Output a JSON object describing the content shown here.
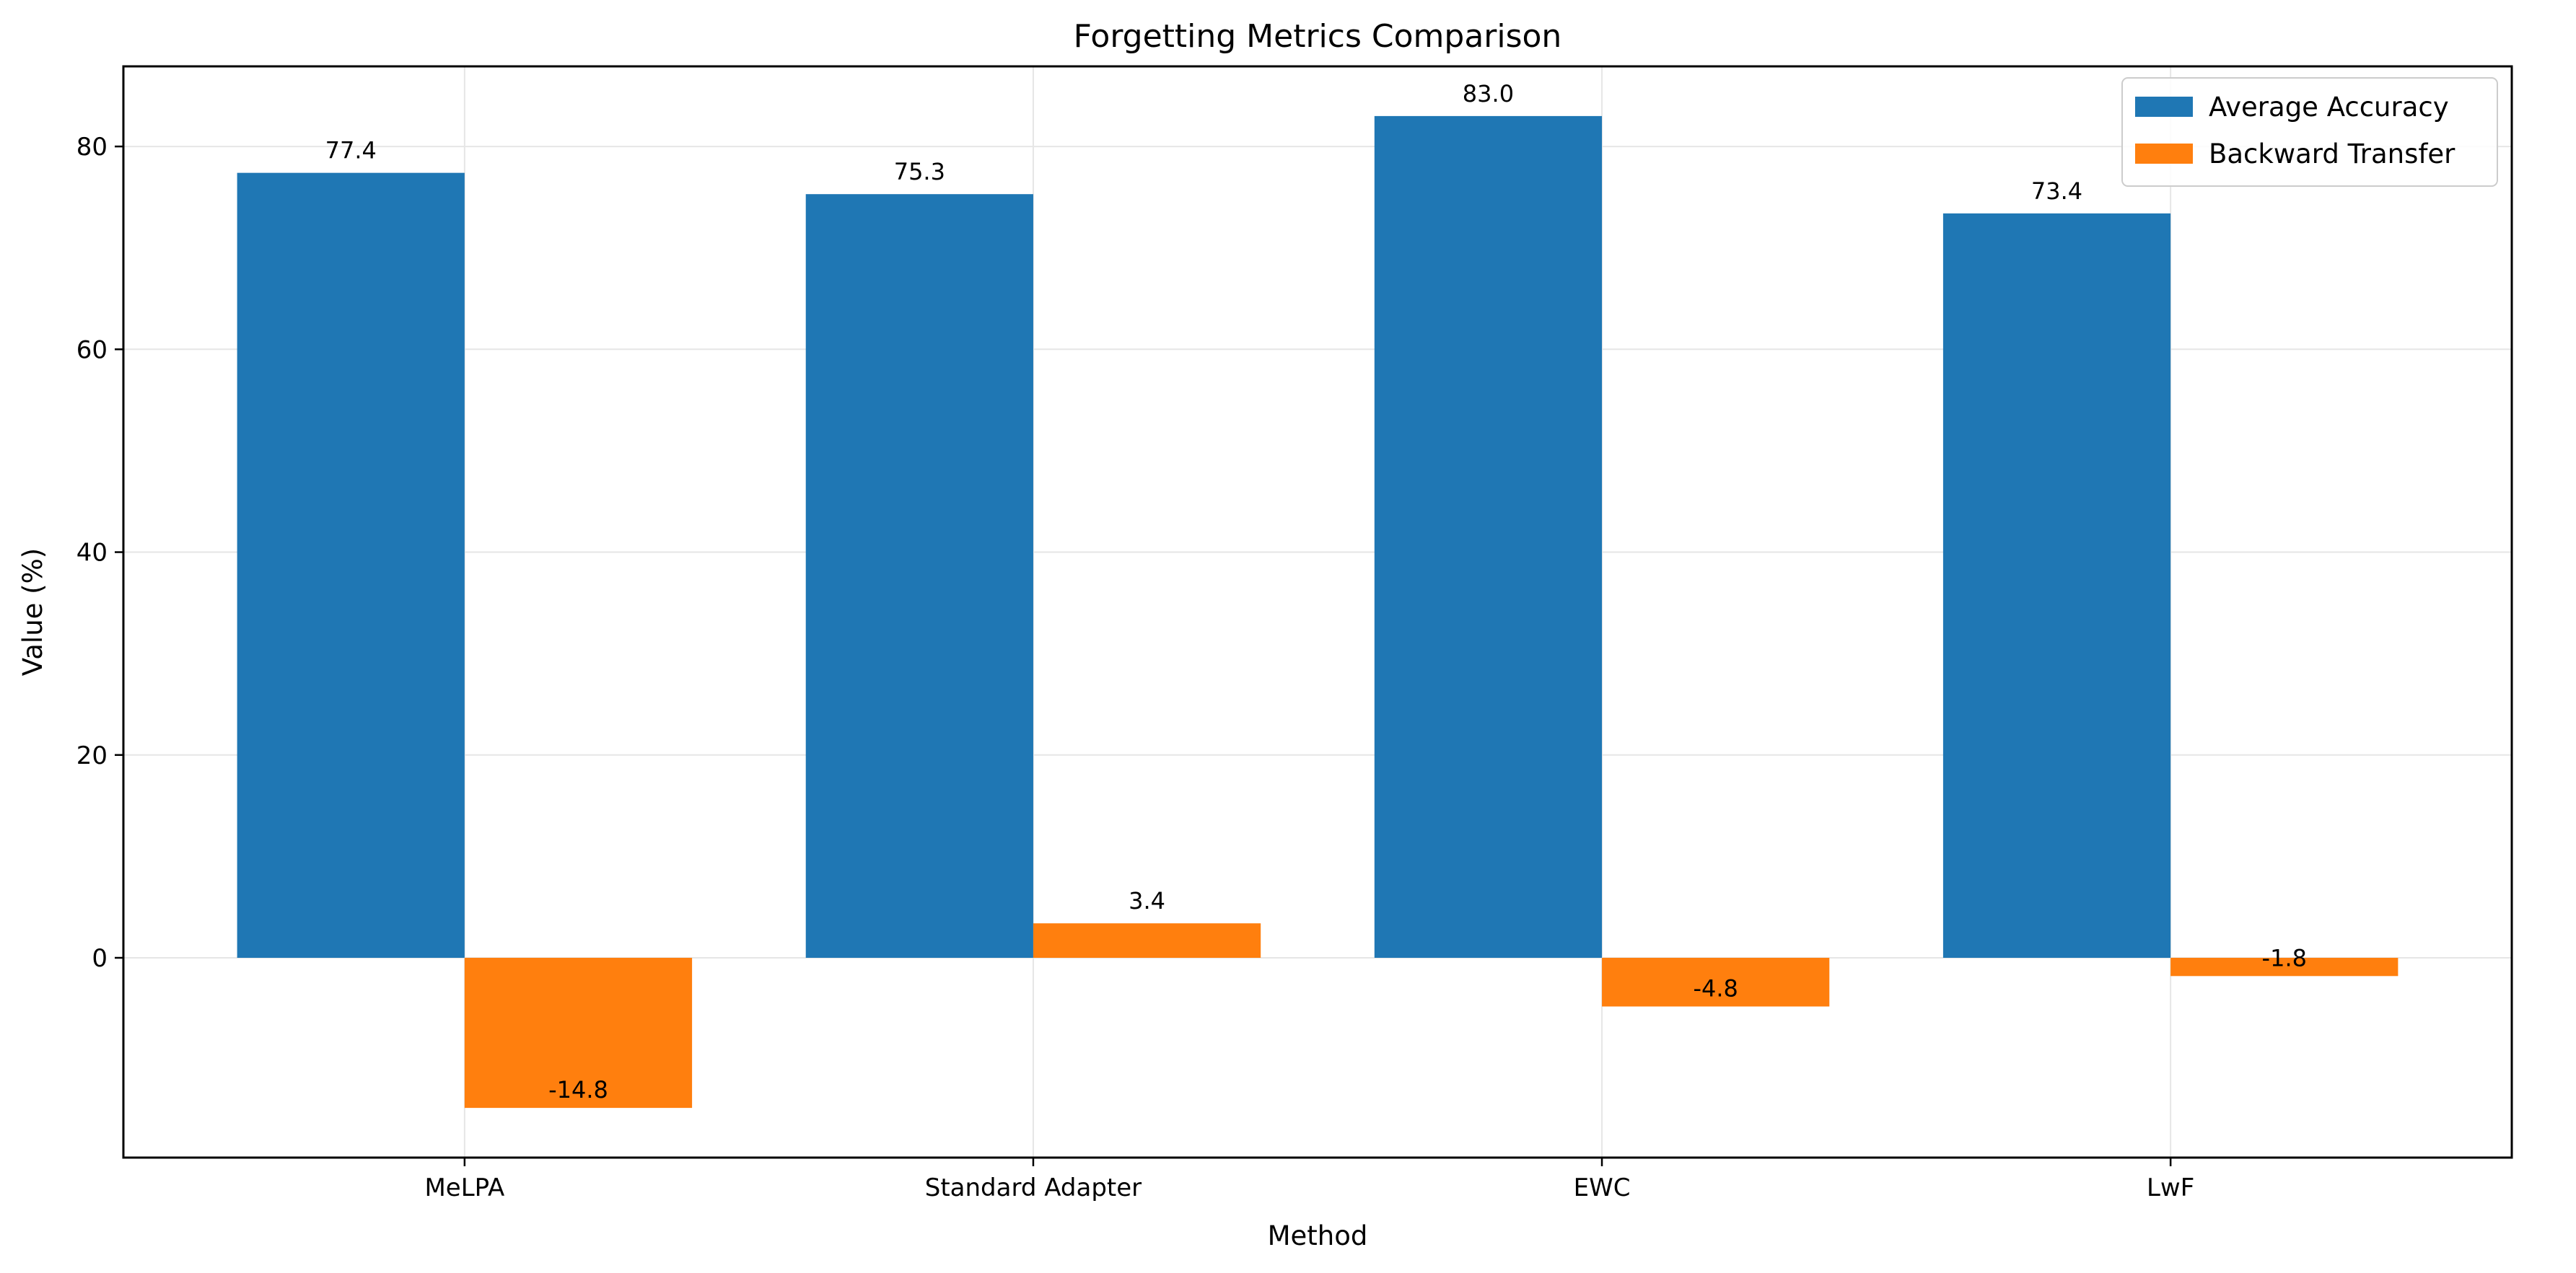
{
  "chart_data": {
    "type": "bar",
    "title": "Forgetting Metrics Comparison",
    "xlabel": "Method",
    "ylabel": "Value (%)",
    "categories": [
      "MeLPA",
      "Standard Adapter",
      "EWC",
      "LwF"
    ],
    "series": [
      {
        "name": "Average Accuracy",
        "color": "#1f77b4",
        "values": [
          77.4,
          75.3,
          83.0,
          73.4
        ],
        "labels": [
          "77.4",
          "75.3",
          "83.0",
          "73.4"
        ]
      },
      {
        "name": "Backward Transfer",
        "color": "#ff7f0e",
        "values": [
          -14.8,
          3.4,
          -4.8,
          -1.8
        ],
        "labels": [
          "-14.8",
          "3.4",
          "-4.8",
          "-1.8"
        ]
      }
    ],
    "ylim": [
      -19.7,
      87.9
    ],
    "yticks": [
      0,
      20,
      40,
      60,
      80
    ],
    "ytick_labels": [
      "0",
      "20",
      "40",
      "60",
      "80"
    ],
    "grid": true,
    "legend_position": "top-right"
  }
}
